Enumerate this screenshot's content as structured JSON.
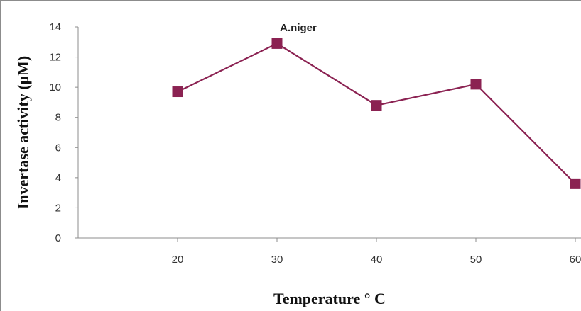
{
  "chart_data": {
    "type": "line",
    "title": "A.niger",
    "xlabel": "Temperature ° C",
    "ylabel": "Invertase activity (μM)",
    "x": [
      20,
      30,
      40,
      50,
      60
    ],
    "x_tick_labels": [
      "20",
      "30",
      "40",
      "50",
      "60"
    ],
    "y_tick_labels": [
      "0",
      "2",
      "4",
      "6",
      "8",
      "10",
      "12",
      "14"
    ],
    "ylim": [
      0,
      14
    ],
    "series": [
      {
        "values": [
          9.7,
          12.9,
          8.8,
          10.2,
          3.6
        ],
        "color": "#8b2252",
        "marker": "square"
      }
    ],
    "grid": false,
    "legend": "none"
  }
}
